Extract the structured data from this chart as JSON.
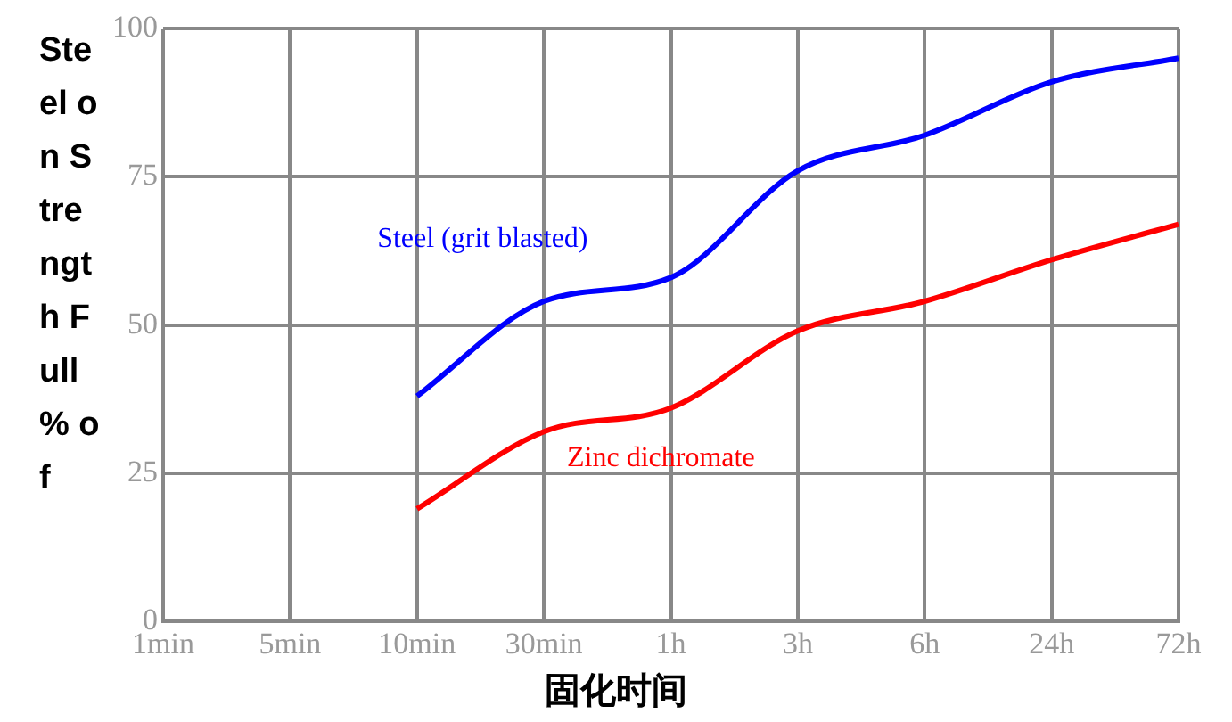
{
  "chart_data": {
    "type": "line",
    "xlabel": "固化时间",
    "ylabel": "Steel on Strength Full % of",
    "categories": [
      "1min",
      "5min",
      "10min",
      "30min",
      "1h",
      "3h",
      "6h",
      "24h",
      "72h"
    ],
    "series": [
      {
        "name": "Steel (grit blasted)",
        "color": "#0000ff",
        "values": [
          null,
          null,
          38,
          54,
          58,
          76,
          82,
          91,
          95
        ]
      },
      {
        "name": "Zinc dichromate",
        "color": "#ff0000",
        "values": [
          null,
          null,
          19,
          32,
          36,
          49,
          54,
          61,
          67
        ]
      }
    ],
    "ylim": [
      0,
      100
    ],
    "yticks": [
      0,
      25,
      50,
      75,
      100
    ],
    "grid": true,
    "legend": false,
    "marker": "none",
    "line_style": "solid"
  }
}
